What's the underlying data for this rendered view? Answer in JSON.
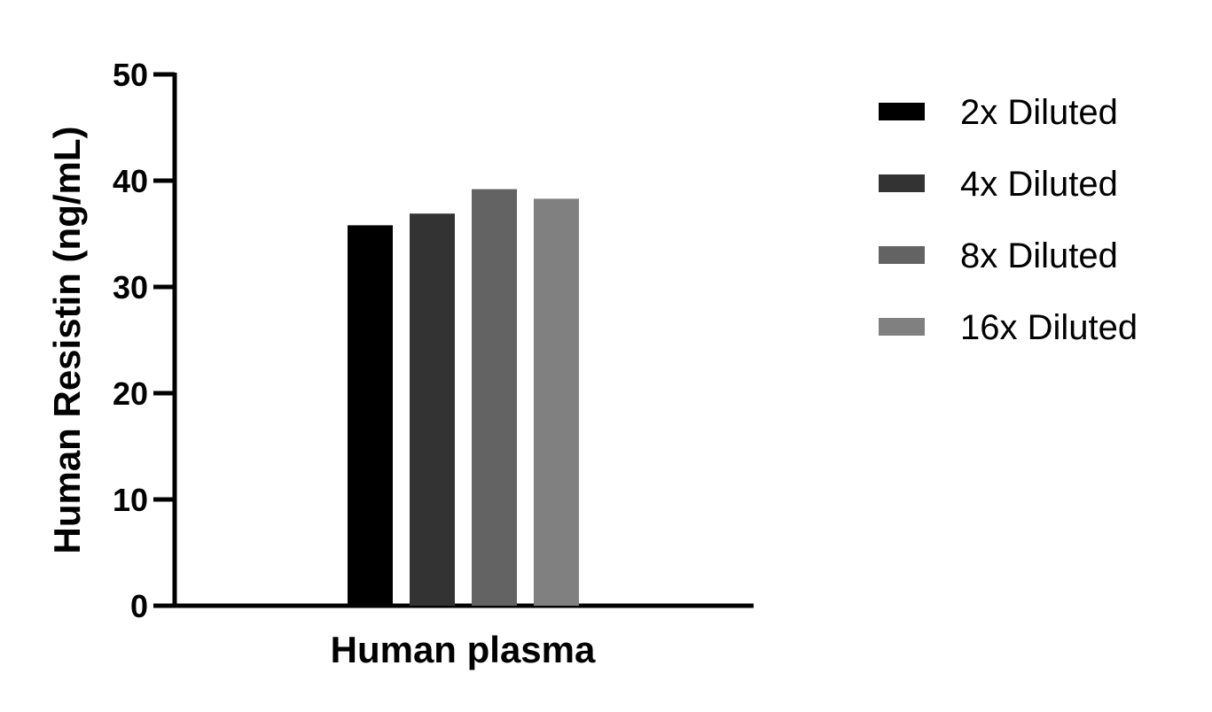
{
  "chart_data": {
    "type": "bar",
    "title": "",
    "xlabel": "Human plasma",
    "ylabel": "Human Resistin (ng/mL)",
    "categories": [
      "Human plasma"
    ],
    "series": [
      {
        "name": "2x Diluted",
        "values": [
          35.8
        ],
        "color": "#000000"
      },
      {
        "name": "4x Diluted",
        "values": [
          36.9
        ],
        "color": "#333333"
      },
      {
        "name": "8x Diluted",
        "values": [
          39.2
        ],
        "color": "#636363"
      },
      {
        "name": "16x Diluted",
        "values": [
          38.3
        ],
        "color": "#808080"
      }
    ],
    "ylim": [
      0,
      50
    ],
    "yticks": [
      0,
      10,
      20,
      30,
      40,
      50
    ],
    "grid": false,
    "legend_position": "right"
  }
}
